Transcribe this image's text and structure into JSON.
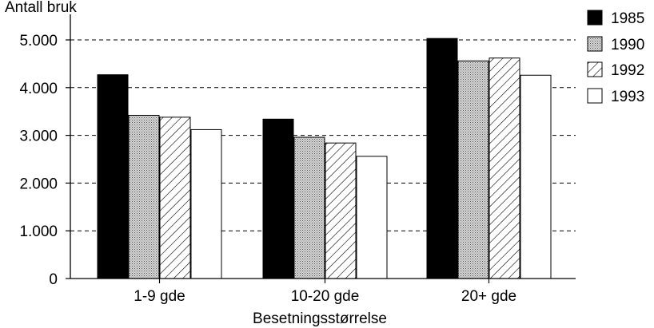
{
  "chart_data": {
    "type": "bar",
    "ylabel": "Antall bruk",
    "xlabel": "Besetningsstørrelse",
    "categories": [
      "1-9 gde",
      "10-20 gde",
      "20+ gde"
    ],
    "series": [
      {
        "name": "1985",
        "values": [
          4270,
          3340,
          5030
        ],
        "pattern": "solid"
      },
      {
        "name": "1990",
        "values": [
          3420,
          2960,
          4560
        ],
        "pattern": "dotted"
      },
      {
        "name": "1992",
        "values": [
          3380,
          2840,
          4620
        ],
        "pattern": "hatched"
      },
      {
        "name": "1993",
        "values": [
          3120,
          2560,
          4260
        ],
        "pattern": "empty"
      }
    ],
    "ylim": [
      0,
      5500
    ],
    "yticks": [
      {
        "value": 0,
        "label": "0"
      },
      {
        "value": 1000,
        "label": "1.000"
      },
      {
        "value": 2000,
        "label": "2.000"
      },
      {
        "value": 3000,
        "label": "3.000"
      },
      {
        "value": 4000,
        "label": "4.000"
      },
      {
        "value": 5000,
        "label": "5.000"
      }
    ],
    "grid": "horizontal dashed",
    "legend_position": "top-right"
  }
}
